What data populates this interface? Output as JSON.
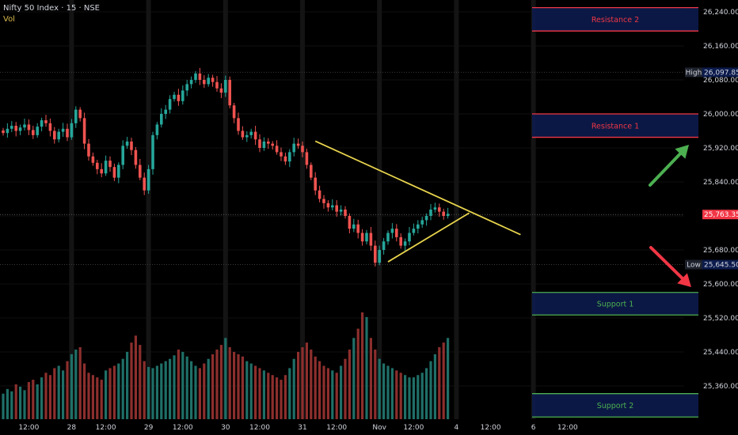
{
  "header": {
    "symbol": "Nifty 50 Index · 15 · NSE",
    "volume_label": "Vol"
  },
  "colors": {
    "bull": "#26a69a",
    "bear": "#ef5350",
    "trendline": "#e8d44d",
    "resistance": "#f23645",
    "support": "#4caf50",
    "box_fill": "#0c1b4d",
    "up_arrow": "#4caf50",
    "down_arrow": "#f23645"
  },
  "chart_data": {
    "type": "candlestick",
    "yaxis": {
      "ticks": [
        "26,240.00",
        "26,160.00",
        "26,080.00",
        "26,000.00",
        "25,920.00",
        "25,840.00",
        "25,760.00",
        "25,680.00",
        "25,600.00",
        "25,520.00",
        "25,440.00",
        "25,360.00"
      ],
      "tick_values": [
        26240,
        26160,
        26080,
        26000,
        25920,
        25840,
        25760,
        25680,
        25600,
        25520,
        25440,
        25360
      ]
    },
    "xaxis": {
      "ticks": [
        {
          "label": "12:00",
          "bar": 6
        },
        {
          "label": "28",
          "bar": 16
        },
        {
          "label": "12:00",
          "bar": 24
        },
        {
          "label": "29",
          "bar": 34
        },
        {
          "label": "12:00",
          "bar": 42
        },
        {
          "label": "30",
          "bar": 52
        },
        {
          "label": "12:00",
          "bar": 60
        },
        {
          "label": "31",
          "bar": 70
        },
        {
          "label": "12:00",
          "bar": 78
        },
        {
          "label": "Nov",
          "bar": 88
        },
        {
          "label": "12:00",
          "bar": 96
        },
        {
          "label": "4",
          "bar": 106
        },
        {
          "label": "12:00",
          "bar": 114
        },
        {
          "label": "6",
          "bar": 124
        },
        {
          "label": "12:00",
          "bar": 132
        }
      ]
    },
    "price_range": [
      25260,
      26270
    ],
    "current_price": {
      "label": "25,763.35",
      "value": 25763.35
    },
    "high": {
      "tag": "High",
      "label": "26,097.85",
      "value": 26097.85
    },
    "low": {
      "tag": "Low",
      "label": "25,645.50",
      "value": 25645.5
    },
    "closes": [
      25955,
      25965,
      25972,
      25960,
      25968,
      25975,
      25962,
      25950,
      25970,
      25985,
      25978,
      25960,
      25940,
      25958,
      25965,
      25945,
      25978,
      26010,
      25990,
      25930,
      25900,
      25885,
      25870,
      25860,
      25890,
      25875,
      25850,
      25880,
      25925,
      25935,
      25915,
      25880,
      25850,
      25820,
      25870,
      25950,
      25975,
      26000,
      26010,
      26035,
      26045,
      26030,
      26055,
      26070,
      26080,
      26095,
      26080,
      26070,
      26085,
      26075,
      26060,
      26050,
      26080,
      26020,
      25990,
      25960,
      25945,
      25950,
      25958,
      25940,
      25920,
      25935,
      25930,
      25925,
      25910,
      25900,
      25888,
      25910,
      25930,
      25925,
      25910,
      25880,
      25850,
      25820,
      25800,
      25790,
      25780,
      25785,
      25770,
      25775,
      25760,
      25730,
      25740,
      25720,
      25700,
      25720,
      25690,
      25650,
      25680,
      25700,
      25720,
      25730,
      25710,
      25690,
      25700,
      25720,
      25730,
      25740,
      25750,
      25760,
      25775,
      25780,
      25770,
      25760,
      25765
    ],
    "volumes": [
      22,
      26,
      24,
      30,
      28,
      25,
      32,
      34,
      30,
      36,
      40,
      38,
      44,
      46,
      42,
      50,
      56,
      60,
      62,
      48,
      40,
      38,
      36,
      34,
      42,
      44,
      46,
      48,
      52,
      58,
      66,
      72,
      64,
      50,
      45,
      44,
      46,
      48,
      50,
      52,
      55,
      60,
      58,
      54,
      50,
      46,
      44,
      48,
      52,
      56,
      60,
      64,
      70,
      62,
      58,
      56,
      54,
      50,
      48,
      46,
      44,
      42,
      40,
      38,
      36,
      34,
      38,
      44,
      52,
      58,
      62,
      66,
      60,
      54,
      50,
      46,
      44,
      42,
      40,
      46,
      52,
      60,
      70,
      78,
      92,
      88,
      70,
      60,
      52,
      48,
      46,
      44,
      42,
      40,
      38,
      36,
      36,
      38,
      40,
      44,
      50,
      56,
      62,
      66,
      70
    ],
    "volume_labels_visible": false,
    "zones": [
      {
        "label": "Resistance 2",
        "top": 26250,
        "bottom": 26195,
        "color": "resistance"
      },
      {
        "label": "Resistance 1",
        "top": 26000,
        "bottom": 25945,
        "color": "resistance"
      },
      {
        "label": "Support 1",
        "top": 25580,
        "bottom": 25527,
        "color": "support"
      },
      {
        "label": "Support 2",
        "top": 25342,
        "bottom": 25287,
        "color": "support"
      }
    ],
    "trendlines": [
      {
        "from": {
          "bar": 73,
          "price": 25936
        },
        "to": {
          "bar": 121,
          "price": 25716
        }
      },
      {
        "from": {
          "bar": 90,
          "price": 25652
        },
        "to": {
          "bar": 109,
          "price": 25767
        }
      }
    ],
    "arrows": [
      {
        "direction": "up",
        "color": "up_arrow"
      },
      {
        "direction": "down",
        "color": "down_arrow"
      }
    ]
  }
}
